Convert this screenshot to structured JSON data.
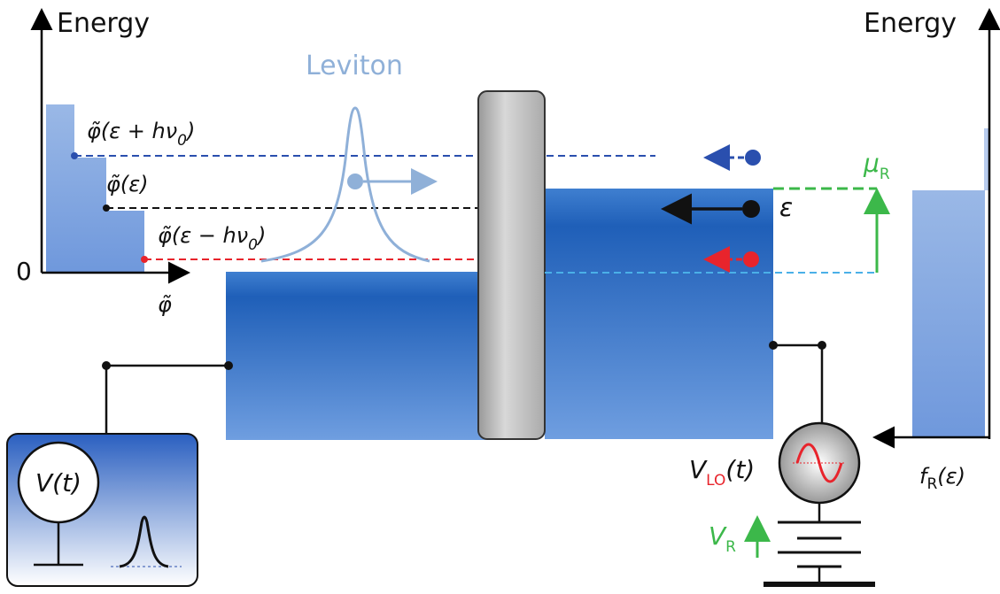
{
  "labels": {
    "energy_left": "Energy",
    "energy_right": "Energy",
    "leviton": "Leviton",
    "zero": "0",
    "phi_axis": "φ̃",
    "phi_plus": {
      "main": "φ̃(ε + hν",
      "sub": "0",
      "tail": ")"
    },
    "phi": "φ̃(ε)",
    "phi_minus": {
      "main": "φ̃(ε − hν",
      "sub": "0",
      "tail": ")"
    },
    "epsilon": "ε",
    "mu_r": {
      "main": "μ",
      "sub": "R"
    },
    "v_t": "V(t)",
    "v_lo": {
      "main": "V",
      "sub": "LO",
      "tail": "(t)"
    },
    "v_r": {
      "main": "V",
      "sub": "R"
    },
    "f_r": {
      "main": "f",
      "sub": "R",
      "tail": "(ε)"
    }
  }
}
